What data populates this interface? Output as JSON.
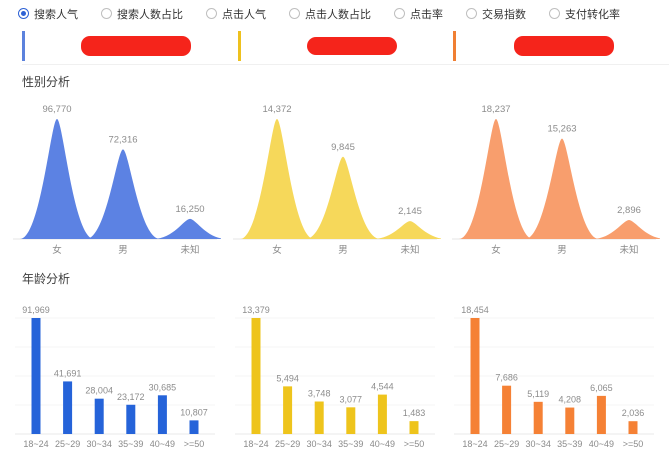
{
  "toolbar": {
    "options": [
      {
        "label": "搜索人气",
        "selected": true
      },
      {
        "label": "搜索人数占比",
        "selected": false
      },
      {
        "label": "点击人气",
        "selected": false
      },
      {
        "label": "点击人数占比",
        "selected": false
      },
      {
        "label": "点击率",
        "selected": false
      },
      {
        "label": "交易指数",
        "selected": false
      },
      {
        "label": "支付转化率",
        "selected": false
      }
    ]
  },
  "legend_cards": [
    {
      "accent_color": "#5c82dd",
      "redaction_color": "#f5241b"
    },
    {
      "accent_color": "#eec11e",
      "redaction_color": "#f5241b"
    },
    {
      "accent_color": "#f07f33",
      "redaction_color": "#f5241b"
    }
  ],
  "sections": {
    "gender": "性别分析",
    "age": "年龄分析"
  },
  "colors": {
    "gender_blue": "#5c82e3",
    "gender_yellow": "#f6d85a",
    "gender_orange": "#f89e6d",
    "age_blue": "#2563d9",
    "age_yellow": "#eec41c",
    "age_orange": "#f58135",
    "value_label": "#8c8c8c",
    "axis_label": "#8a8a8a",
    "axis_line": "#e4e4e4",
    "grid_line": "#f4f4f4"
  },
  "chart_data": [
    {
      "id": "gender-0",
      "type": "area",
      "section_title": "性别分析",
      "grid": false,
      "color": "#5c82e3",
      "categories": [
        "女",
        "男",
        "未知"
      ],
      "values": [
        96770,
        72316,
        16250
      ],
      "labels": [
        "96,770",
        "72,316",
        "16,250"
      ]
    },
    {
      "id": "gender-1",
      "type": "area",
      "section_title": "性别分析",
      "grid": false,
      "color": "#f6d85a",
      "categories": [
        "女",
        "男",
        "未知"
      ],
      "values": [
        14372,
        9845,
        2145
      ],
      "labels": [
        "14,372",
        "9,845",
        "2,145"
      ]
    },
    {
      "id": "gender-2",
      "type": "area",
      "section_title": "性别分析",
      "grid": false,
      "color": "#f89e6d",
      "categories": [
        "女",
        "男",
        "未知"
      ],
      "values": [
        18237,
        15263,
        2896
      ],
      "labels": [
        "18,237",
        "15,263",
        "2,896"
      ]
    },
    {
      "id": "age-0",
      "type": "bar",
      "section_title": "年龄分析",
      "grid": true,
      "color": "#2563d9",
      "categories": [
        "18~24",
        "25~29",
        "30~34",
        "35~39",
        "40~49",
        ">=50"
      ],
      "values": [
        91969,
        41691,
        28004,
        23172,
        30685,
        10807
      ],
      "labels": [
        "91,969",
        "41,691",
        "28,004",
        "23,172",
        "30,685",
        "10,807"
      ]
    },
    {
      "id": "age-1",
      "type": "bar",
      "section_title": "年龄分析",
      "grid": true,
      "color": "#eec41c",
      "categories": [
        "18~24",
        "25~29",
        "30~34",
        "35~39",
        "40~49",
        ">=50"
      ],
      "values": [
        13379,
        5494,
        3748,
        3077,
        4544,
        1483
      ],
      "labels": [
        "13,379",
        "5,494",
        "3,748",
        "3,077",
        "4,544",
        "1,483"
      ]
    },
    {
      "id": "age-2",
      "type": "bar",
      "section_title": "年龄分析",
      "grid": true,
      "color": "#f58135",
      "categories": [
        "18~24",
        "25~29",
        "30~34",
        "35~39",
        "40~49",
        ">=50"
      ],
      "values": [
        18454,
        7686,
        5119,
        4208,
        6065,
        2036
      ],
      "labels": [
        "18,454",
        "7,686",
        "5,119",
        "4,208",
        "6,065",
        "2,036"
      ]
    }
  ]
}
